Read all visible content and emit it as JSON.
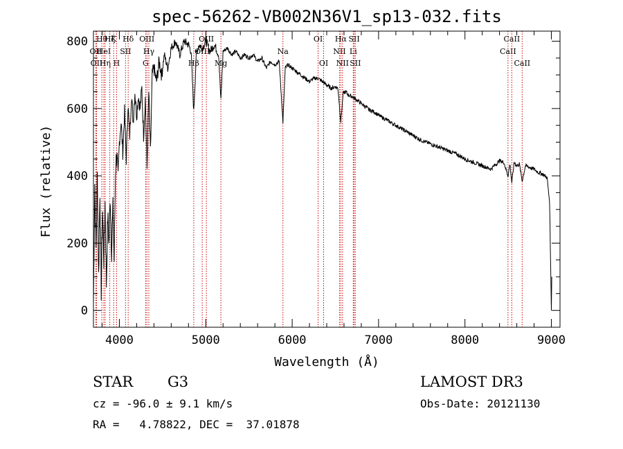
{
  "chart_data": {
    "type": "line",
    "title": "spec-56262-VB002N36V1_sp13-032.fits",
    "xlabel": "Wavelength (Å)",
    "ylabel": "Flux (relative)",
    "xlim": [
      3700,
      9100
    ],
    "ylim": [
      -50,
      830
    ],
    "xticks": [
      4000,
      5000,
      6000,
      7000,
      8000,
      9000
    ],
    "yticks": [
      0,
      200,
      400,
      600,
      800
    ],
    "series": [
      {
        "name": "flux",
        "x": [
          3700,
          3715,
          3730,
          3745,
          3760,
          3775,
          3790,
          3805,
          3820,
          3835,
          3850,
          3865,
          3880,
          3895,
          3910,
          3925,
          3940,
          3955,
          3970,
          3985,
          4000,
          4020,
          4040,
          4060,
          4080,
          4100,
          4120,
          4140,
          4160,
          4180,
          4200,
          4220,
          4240,
          4260,
          4280,
          4300,
          4320,
          4340,
          4360,
          4380,
          4400,
          4430,
          4460,
          4490,
          4520,
          4560,
          4600,
          4650,
          4700,
          4750,
          4800,
          4830,
          4861,
          4890,
          4920,
          4960,
          5000,
          5050,
          5100,
          5150,
          5175,
          5200,
          5250,
          5300,
          5350,
          5400,
          5450,
          5500,
          5550,
          5600,
          5650,
          5700,
          5750,
          5800,
          5850,
          5893,
          5920,
          5950,
          6000,
          6050,
          6100,
          6150,
          6200,
          6250,
          6300,
          6350,
          6400,
          6450,
          6500,
          6530,
          6563,
          6590,
          6620,
          6650,
          6700,
          6750,
          6800,
          6850,
          6900,
          6950,
          7000,
          7100,
          7200,
          7300,
          7400,
          7500,
          7600,
          7700,
          7800,
          7900,
          8000,
          8100,
          8200,
          8300,
          8400,
          8450,
          8498,
          8520,
          8542,
          8570,
          8600,
          8630,
          8662,
          8700,
          8750,
          8800,
          8850,
          8900,
          8950,
          8980,
          9000,
          9005
        ],
        "values": [
          20,
          380,
          180,
          400,
          100,
          360,
          60,
          300,
          150,
          320,
          80,
          280,
          200,
          340,
          180,
          300,
          150,
          420,
          470,
          380,
          500,
          560,
          470,
          590,
          450,
          610,
          520,
          640,
          560,
          650,
          580,
          640,
          600,
          660,
          520,
          630,
          420,
          650,
          470,
          700,
          720,
          680,
          740,
          700,
          760,
          720,
          780,
          800,
          760,
          800,
          790,
          770,
          590,
          760,
          790,
          780,
          800,
          770,
          790,
          760,
          620,
          770,
          780,
          760,
          770,
          750,
          760,
          750,
          760,
          740,
          750,
          720,
          740,
          730,
          740,
          560,
          720,
          730,
          720,
          710,
          700,
          690,
          680,
          690,
          690,
          680,
          670,
          660,
          665,
          660,
          560,
          645,
          650,
          640,
          635,
          625,
          615,
          605,
          595,
          590,
          580,
          565,
          550,
          535,
          520,
          505,
          495,
          485,
          475,
          465,
          450,
          440,
          430,
          420,
          445,
          440,
          400,
          435,
          380,
          440,
          430,
          435,
          385,
          430,
          425,
          420,
          410,
          405,
          395,
          320,
          0,
          100
        ]
      }
    ],
    "line_markers": [
      {
        "wl": 3727,
        "label": "OII",
        "row": 1
      },
      {
        "wl": 3736,
        "label": "OII",
        "row": 2
      },
      {
        "wl": 3797,
        "label": "Hθ",
        "row": 0
      },
      {
        "wl": 3820,
        "label": "HeI",
        "row": 1
      },
      {
        "wl": 3835,
        "label": "Hη",
        "row": 2
      },
      {
        "wl": 3889,
        "label": "Hζ",
        "row": 0
      },
      {
        "wl": 3934,
        "label": "K",
        "row": 0
      },
      {
        "wl": 3968,
        "label": "H",
        "row": 2
      },
      {
        "wl": 4071,
        "label": "SII",
        "row": 1
      },
      {
        "wl": 4102,
        "label": "Hδ",
        "row": 0
      },
      {
        "wl": 4304,
        "label": "G",
        "row": 2
      },
      {
        "wl": 4319,
        "label": "OIII",
        "row": 0
      },
      {
        "wl": 4341,
        "label": "Hγ",
        "row": 1
      },
      {
        "wl": 4861,
        "label": "Hβ",
        "row": 2
      },
      {
        "wl": 4959,
        "label": "OIII",
        "row": 1
      },
      {
        "wl": 5007,
        "label": "OIII",
        "row": 0
      },
      {
        "wl": 5175,
        "label": "Mg",
        "row": 2
      },
      {
        "wl": 5893,
        "label": "Na",
        "row": 1
      },
      {
        "wl": 6300,
        "label": "OI",
        "row": 0
      },
      {
        "wl": 6364,
        "label": "OI",
        "row": 2
      },
      {
        "wl": 6548,
        "label": "NII",
        "row": 1
      },
      {
        "wl": 6563,
        "label": "Hα",
        "row": 0
      },
      {
        "wl": 6583,
        "label": "NII",
        "row": 2
      },
      {
        "wl": 6707,
        "label": "Li",
        "row": 1
      },
      {
        "wl": 6717,
        "label": "SII",
        "row": 0
      },
      {
        "wl": 6731,
        "label": "SII",
        "row": 2
      },
      {
        "wl": 8498,
        "label": "CaII",
        "row": 1
      },
      {
        "wl": 8542,
        "label": "CaII",
        "row": 0
      },
      {
        "wl": 8662,
        "label": "CaII",
        "row": 2
      }
    ]
  },
  "footer": {
    "object_class": "STAR",
    "subclass": "G3",
    "survey": "LAMOST DR3",
    "redshift": "cz = -96.0 ± 9.1 km/s",
    "obs_date": "Obs-Date: 20121130",
    "coords": "RA =   4.78822, DEC =  37.01878"
  }
}
